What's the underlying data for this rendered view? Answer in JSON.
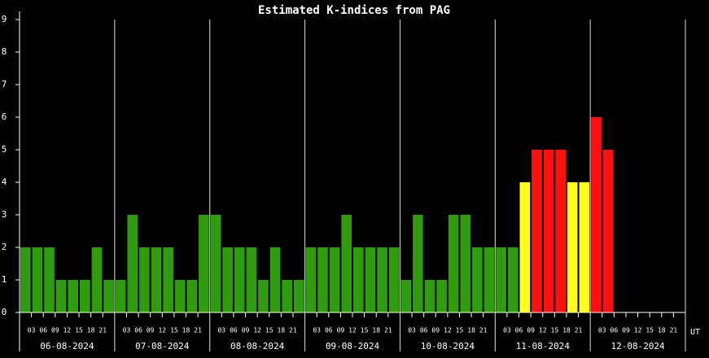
{
  "chart_data": {
    "type": "bar",
    "title": "Estimated K-indices from PAG",
    "days": [
      "06-08-2024",
      "07-08-2024",
      "08-08-2024",
      "09-08-2024",
      "10-08-2024",
      "11-08-2024",
      "12-08-2024"
    ],
    "hour_labels": [
      "03",
      "06",
      "09",
      "12",
      "15",
      "18",
      "21"
    ],
    "x_unit_label": "UT",
    "values": [
      2,
      2,
      2,
      1,
      1,
      1,
      2,
      1,
      1,
      3,
      2,
      2,
      2,
      1,
      1,
      3,
      3,
      2,
      2,
      2,
      1,
      2,
      1,
      1,
      2,
      2,
      2,
      3,
      2,
      2,
      2,
      2,
      1,
      3,
      1,
      1,
      3,
      3,
      2,
      2,
      2,
      2,
      4,
      5,
      5,
      5,
      4,
      4,
      6,
      5,
      null,
      null,
      null,
      null,
      null,
      null
    ],
    "colors": [
      "#2e9c0c",
      "#2e9c0c",
      "#2e9c0c",
      "#2e9c0c",
      "#2e9c0c",
      "#2e9c0c",
      "#2e9c0c",
      "#2e9c0c",
      "#2e9c0c",
      "#2e9c0c",
      "#2e9c0c",
      "#2e9c0c",
      "#2e9c0c",
      "#2e9c0c",
      "#2e9c0c",
      "#2e9c0c",
      "#2e9c0c",
      "#2e9c0c",
      "#2e9c0c",
      "#2e9c0c",
      "#2e9c0c",
      "#2e9c0c",
      "#2e9c0c",
      "#2e9c0c",
      "#2e9c0c",
      "#2e9c0c",
      "#2e9c0c",
      "#2e9c0c",
      "#2e9c0c",
      "#2e9c0c",
      "#2e9c0c",
      "#2e9c0c",
      "#2e9c0c",
      "#2e9c0c",
      "#2e9c0c",
      "#2e9c0c",
      "#2e9c0c",
      "#2e9c0c",
      "#2e9c0c",
      "#2e9c0c",
      "#2e9c0c",
      "#2e9c0c",
      "#ffff1a",
      "#ff1010",
      "#ff1010",
      "#ff1010",
      "#ffff1a",
      "#ffff1a",
      "#ff1010",
      "#ff1010",
      null,
      null,
      null,
      null,
      null,
      null
    ],
    "ylim": [
      0,
      9
    ],
    "yticks": [
      0,
      1,
      2,
      3,
      4,
      5,
      6,
      7,
      8,
      9
    ]
  }
}
